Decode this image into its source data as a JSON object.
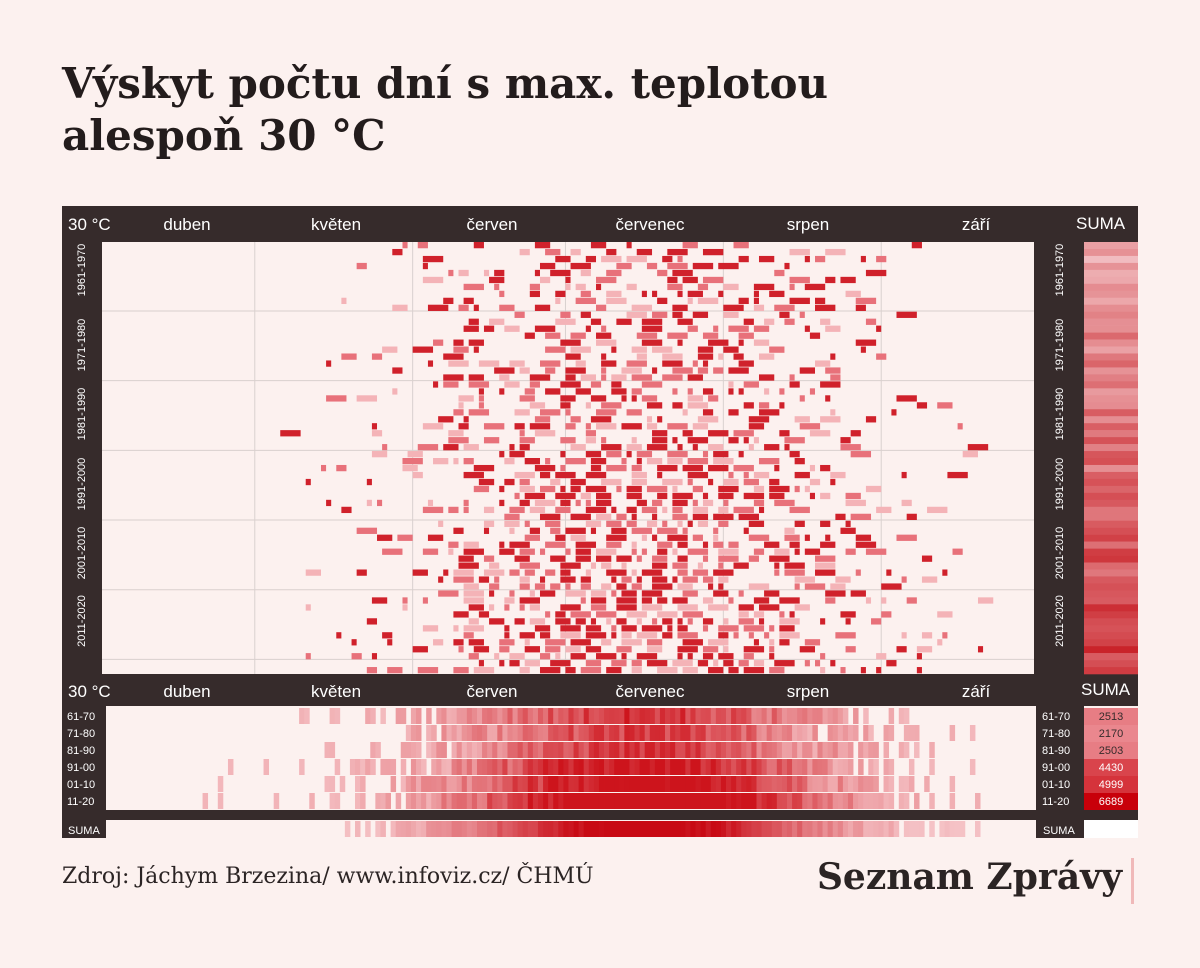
{
  "title_line1": "Výskyt počtu dní s max. teplotou",
  "title_line2": "alespoň 30 °C",
  "source": "Zdroj: Jáchym Brzezina/ www.infoviz.cz/ ČHMÚ",
  "brand": "Seznam Zprávy",
  "colors": {
    "panel": "#362b2b",
    "cell_background": "#fcf1ef",
    "grid": "#d9d0ce",
    "hot": "#c8000a"
  },
  "chart_data": {
    "type": "heatmap",
    "corner_label": "30 °C",
    "months": [
      "duben",
      "květen",
      "červen",
      "červenec",
      "srpen",
      "září"
    ],
    "suma_label": "SUMA",
    "top_panel": {
      "decade_labels": [
        "1961-1970",
        "1971-1980",
        "1981-1990",
        "1991-2000",
        "2001-2010",
        "2011-2020"
      ],
      "years_from": 1961,
      "years_to": 2022,
      "note": "one row per year, one column per day (April–September); cell darkness = hot day occurrence"
    },
    "bottom_panel": {
      "decade_labels": [
        "61-70",
        "71-80",
        "81-90",
        "91-00",
        "01-10",
        "11-20"
      ],
      "suma_values": [
        2513,
        2170,
        2503,
        4430,
        4999,
        6689
      ],
      "suma_row_label": "SUMA"
    }
  }
}
